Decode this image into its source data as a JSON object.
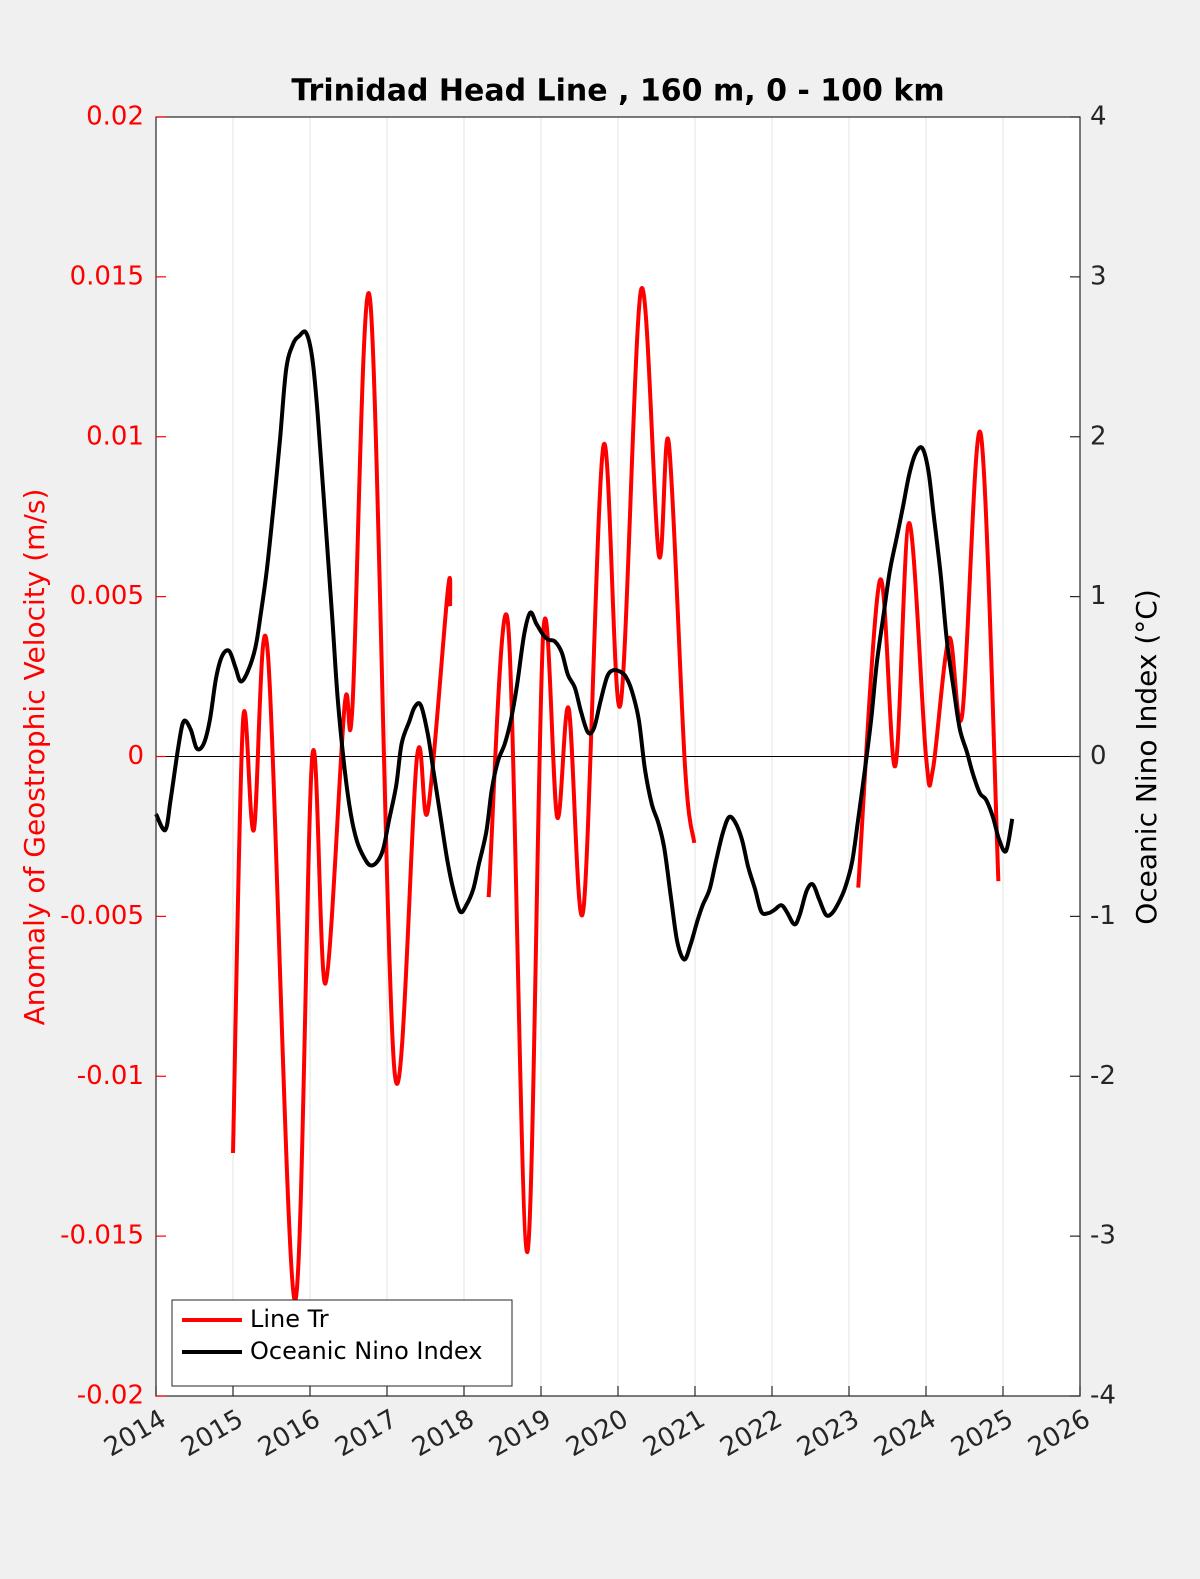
{
  "chart_data": {
    "type": "line",
    "title": "Trinidad Head Line , 160 m, 0 - 100 km",
    "ylabel": "Anomaly of Geostrophic Velocity (m/s)",
    "y2label": "Oceanic Nino Index (°C)",
    "xlim": [
      2014,
      2026
    ],
    "xticks": [
      2014,
      2015,
      2016,
      2017,
      2018,
      2019,
      2020,
      2021,
      2022,
      2023,
      2024,
      2025,
      2026
    ],
    "ylim": [
      -0.02,
      0.02
    ],
    "yticks": [
      -0.02,
      -0.015,
      -0.01,
      -0.005,
      0,
      0.005,
      0.01,
      0.015,
      0.02
    ],
    "y2lim": [
      -4,
      4
    ],
    "y2ticks": [
      -4,
      -3,
      -2,
      -1,
      0,
      1,
      2,
      3,
      4
    ],
    "grid": "x",
    "legend": "lower left",
    "series": [
      {
        "name": "Line Tr",
        "color": "#ff0000",
        "axis": "y",
        "x": [
          2015.0,
          2015.13,
          2015.27,
          2015.45,
          2015.8,
          2016.03,
          2016.2,
          2016.45,
          2016.55,
          2016.78,
          2017.1,
          2017.39,
          2017.53,
          2017.79,
          2017.82,
          2018.0,
          2018.32,
          2018.57,
          2018.82,
          2019.03,
          2019.21,
          2019.36,
          2019.55,
          2019.81,
          2020.03,
          2020.3,
          2020.53,
          2020.66,
          2020.87,
          2020.99,
          2022.0,
          2023.12,
          2023.4,
          2023.6,
          2023.78,
          2024.0,
          2024.09,
          2024.3,
          2024.47,
          2024.71,
          2024.94
        ],
        "values": [
          -0.0124,
          0.0011,
          -0.0023,
          0.0033,
          -0.017,
          0.0,
          -0.0071,
          0.0016,
          0.0015,
          0.0143,
          -0.0099,
          0.0,
          -0.0017,
          0.0052,
          0.0047,
          null,
          -0.0044,
          0.0042,
          -0.0155,
          0.0039,
          -0.0019,
          0.0015,
          -0.0048,
          0.0097,
          0.0016,
          0.0146,
          0.0063,
          0.0098,
          -0.0003,
          -0.0027,
          null,
          -0.0041,
          0.0055,
          -0.0003,
          0.0073,
          0.0,
          -0.0004,
          0.0037,
          0.0013,
          0.0101,
          -0.0039
        ]
      },
      {
        "name": "Oceanic Nino Index",
        "color": "#000000",
        "axis": "y2",
        "x": [
          2014.0,
          2014.12,
          2014.19,
          2014.29,
          2014.36,
          2014.45,
          2014.53,
          2014.62,
          2014.7,
          2014.78,
          2014.86,
          2014.95,
          2015.03,
          2015.1,
          2015.19,
          2015.29,
          2015.36,
          2015.44,
          2015.53,
          2015.61,
          2015.69,
          2015.78,
          2015.86,
          2015.95,
          2016.03,
          2016.1,
          2016.19,
          2016.29,
          2016.36,
          2016.45,
          2016.53,
          2016.61,
          2016.7,
          2016.78,
          2016.87,
          2016.95,
          2017.03,
          2017.12,
          2017.19,
          2017.29,
          2017.36,
          2017.44,
          2017.53,
          2017.6,
          2017.69,
          2017.78,
          2017.86,
          2017.95,
          2018.03,
          2018.12,
          2018.19,
          2018.29,
          2018.36,
          2018.44,
          2018.53,
          2018.61,
          2018.69,
          2018.78,
          2018.86,
          2018.94,
          2019.03,
          2019.1,
          2019.18,
          2019.27,
          2019.35,
          2019.44,
          2019.52,
          2019.61,
          2019.69,
          2019.77,
          2019.86,
          2019.94,
          2020.03,
          2020.1,
          2020.18,
          2020.27,
          2020.35,
          2020.44,
          2020.52,
          2020.6,
          2020.69,
          2020.77,
          2020.86,
          2020.94,
          2021.03,
          2021.1,
          2021.19,
          2021.27,
          2021.36,
          2021.44,
          2021.52,
          2021.61,
          2021.69,
          2021.78,
          2021.86,
          2021.95,
          2022.03,
          2022.12,
          2022.19,
          2022.29,
          2022.36,
          2022.45,
          2022.53,
          2022.61,
          2022.7,
          2022.78,
          2022.87,
          2022.95,
          2023.04,
          2023.12,
          2023.21,
          2023.29,
          2023.36,
          2023.45,
          2023.53,
          2023.62,
          2023.7,
          2023.78,
          2023.86,
          2023.95,
          2024.03,
          2024.1,
          2024.19,
          2024.27,
          2024.36,
          2024.44,
          2024.53,
          2024.61,
          2024.7,
          2024.78,
          2024.87,
          2024.95,
          2025.04,
          2025.12
        ],
        "values": [
          -0.36,
          -0.46,
          -0.27,
          0.06,
          0.22,
          0.17,
          0.05,
          0.08,
          0.23,
          0.49,
          0.63,
          0.66,
          0.56,
          0.47,
          0.53,
          0.68,
          0.89,
          1.17,
          1.58,
          1.98,
          2.42,
          2.58,
          2.63,
          2.65,
          2.49,
          2.14,
          1.54,
          0.86,
          0.36,
          -0.08,
          -0.36,
          -0.53,
          -0.63,
          -0.68,
          -0.66,
          -0.58,
          -0.39,
          -0.18,
          0.08,
          0.22,
          0.31,
          0.32,
          0.14,
          -0.08,
          -0.36,
          -0.64,
          -0.83,
          -0.97,
          -0.93,
          -0.83,
          -0.68,
          -0.47,
          -0.21,
          -0.03,
          0.08,
          0.23,
          0.45,
          0.76,
          0.9,
          0.83,
          0.76,
          0.73,
          0.72,
          0.65,
          0.51,
          0.43,
          0.28,
          0.15,
          0.18,
          0.34,
          0.5,
          0.54,
          0.53,
          0.5,
          0.41,
          0.23,
          -0.08,
          -0.3,
          -0.41,
          -0.57,
          -0.89,
          -1.16,
          -1.27,
          -1.18,
          -1.03,
          -0.93,
          -0.83,
          -0.66,
          -0.48,
          -0.38,
          -0.41,
          -0.52,
          -0.69,
          -0.83,
          -0.97,
          -0.98,
          -0.96,
          -0.93,
          -0.97,
          -1.05,
          -0.99,
          -0.84,
          -0.8,
          -0.89,
          -0.99,
          -0.98,
          -0.91,
          -0.82,
          -0.66,
          -0.39,
          -0.07,
          0.24,
          0.58,
          0.89,
          1.16,
          1.37,
          1.56,
          1.76,
          1.89,
          1.93,
          1.79,
          1.51,
          1.14,
          0.73,
          0.42,
          0.17,
          0.03,
          -0.11,
          -0.23,
          -0.27,
          -0.38,
          -0.52,
          -0.59,
          -0.39
        ]
      }
    ]
  }
}
